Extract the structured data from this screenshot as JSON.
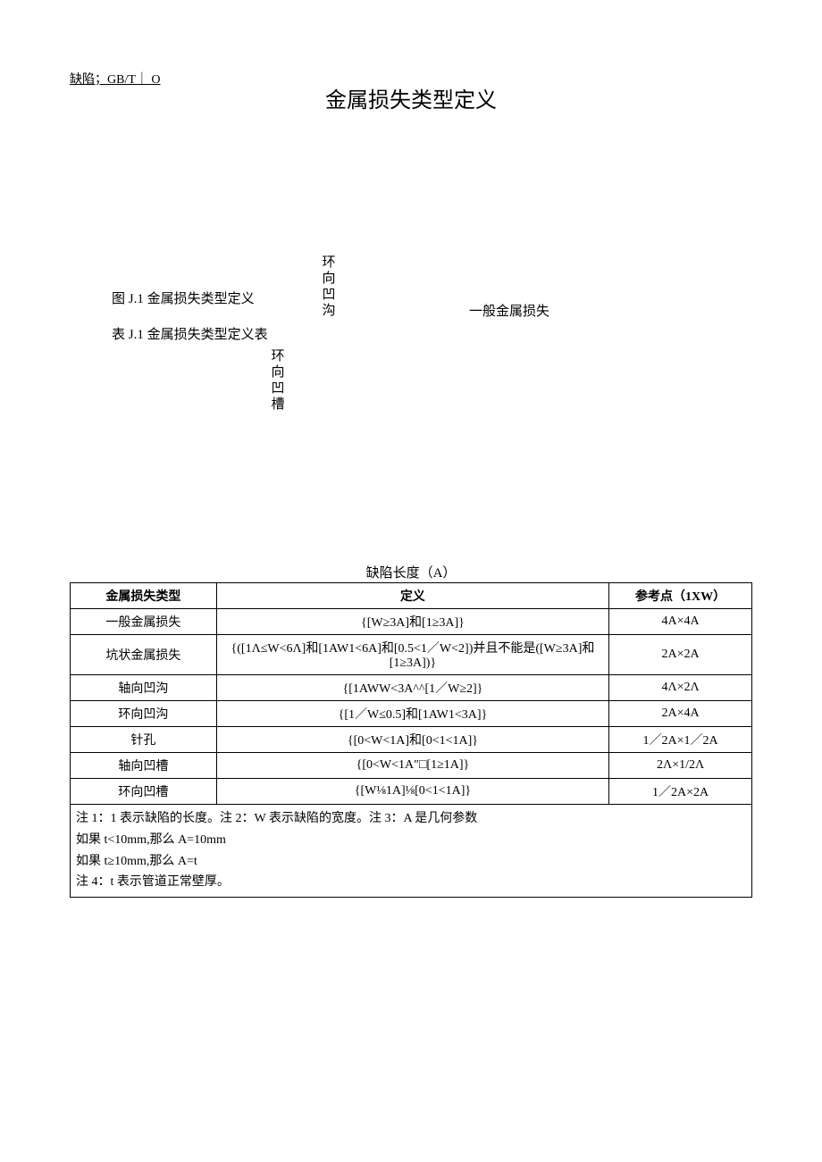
{
  "header_code": "缺陷；GB/T｜ O",
  "main_title": "金属损失类型定义",
  "diagram": {
    "vlabel1": "环向凹沟",
    "vlabel2": "环向凹槽",
    "fig_caption": "图 J.1 金属损失类型定义",
    "table_caption": "表 J.1 金属损失类型定义表",
    "general_label": "一般金属损失"
  },
  "table_title": "缺陷长度（A）",
  "table": {
    "headers": {
      "col1": "金属损失类型",
      "col2": "定义",
      "col3": "参考点（1XW）"
    },
    "rows": [
      {
        "type": "一般金属损失",
        "definition": "{[W≥3A]和[1≥3A]}",
        "ref": "4A×4A"
      },
      {
        "type": "坑状金属损失",
        "definition": "{([1Λ≤W<6Λ]和[1AW1<6A]和[0.5<1／W<2])并且不能是([W≥3A]和[1≥3A])}",
        "ref": "2A×2A"
      },
      {
        "type": "轴向凹沟",
        "definition": "{[1AWW<3A^^[1／W≥2]}",
        "ref": "4Λ×2Λ"
      },
      {
        "type": "环向凹沟",
        "definition": "{[1／W≤0.5]和[1AW1<3A]}",
        "ref": "2A×4A"
      },
      {
        "type": "针孔",
        "definition": "{[0<W<1A]和[0<1<1A]}",
        "ref": "1／2A×1／2A"
      },
      {
        "type": "轴向凹槽",
        "definition": "{[0<W<1A″□[1≥1A]}",
        "ref": "2Λ×1/2Λ"
      },
      {
        "type": "环向凹槽",
        "definition": "{[W⅛1A]⅛[0<1<1A]}",
        "ref": "1／2A×2A"
      }
    ],
    "notes": "注 1：1 表示缺陷的长度。注 2：W 表示缺陷的宽度。注 3：A 是几何参数\n如果 t<10mm,那么 A=10mm\n如果 t≥10mm,那么 A=t\n注 4：t 表示管道正常壁厚。"
  }
}
